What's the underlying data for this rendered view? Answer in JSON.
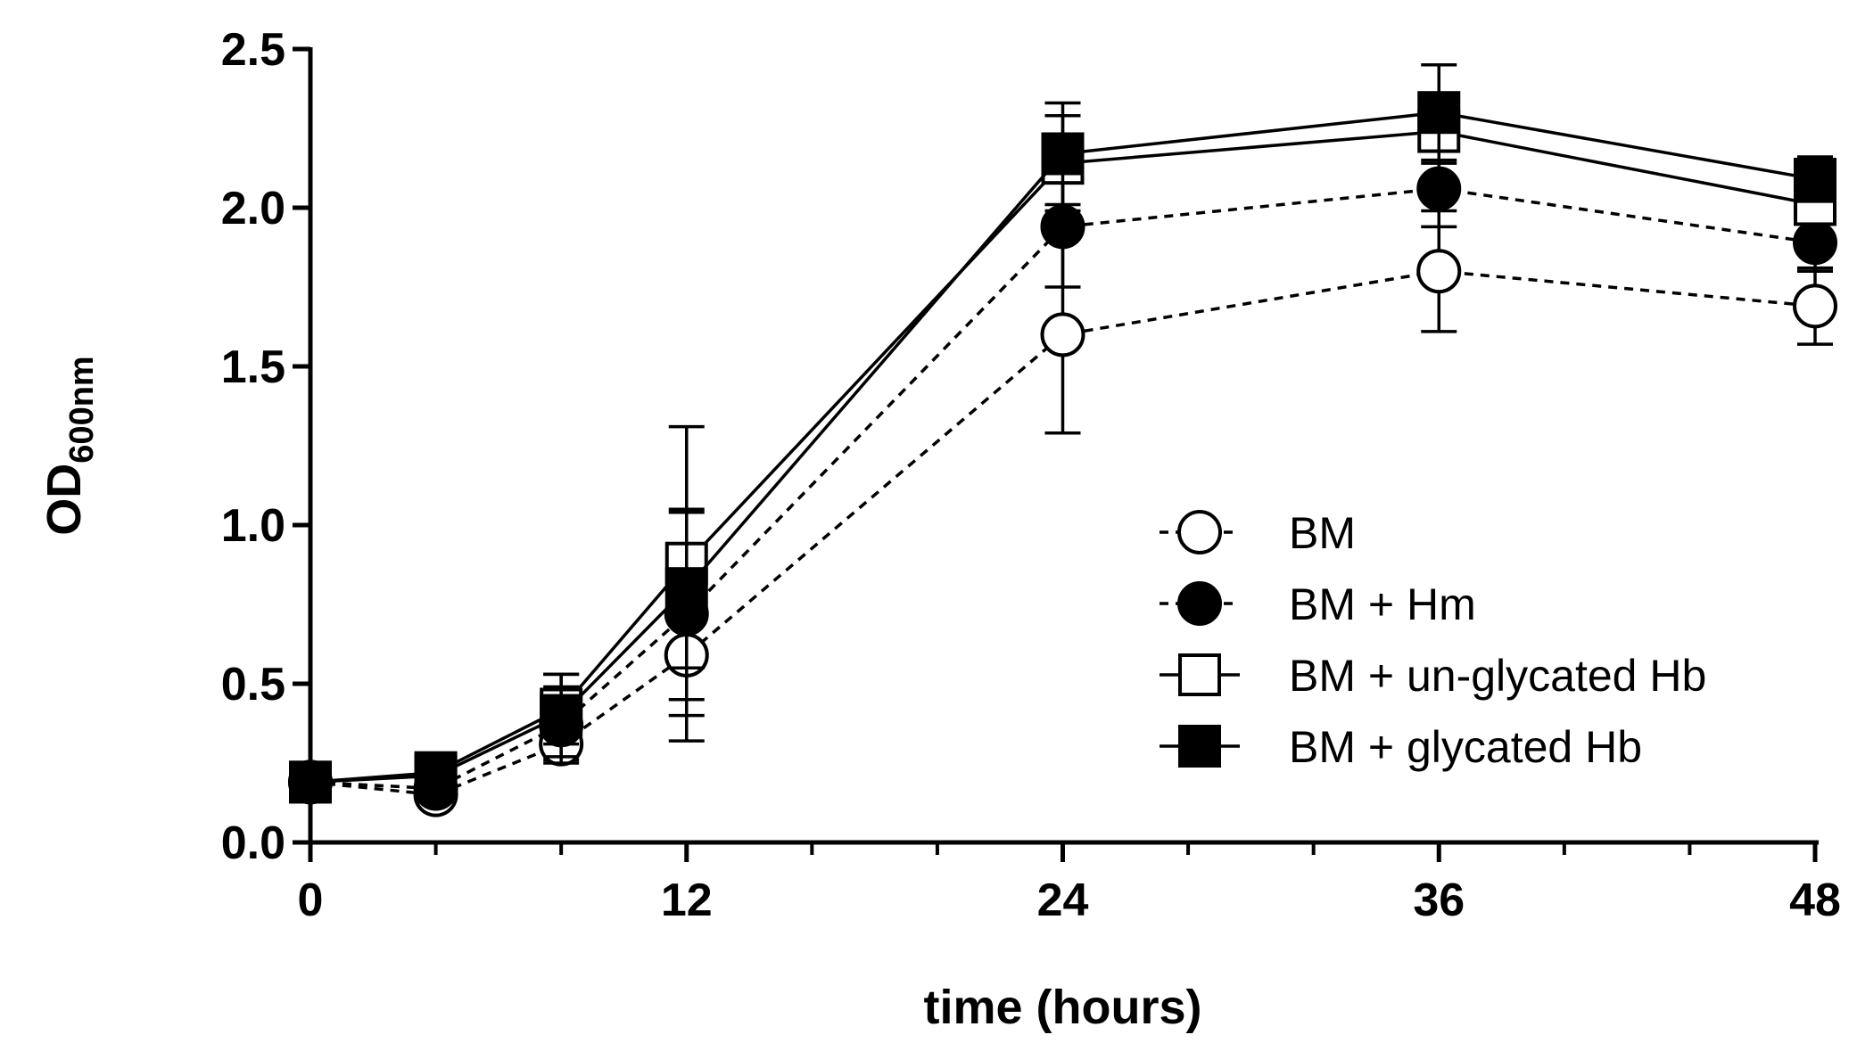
{
  "chart_data": {
    "type": "line",
    "title": "",
    "xlabel": "time (hours)",
    "ylabel": "OD",
    "ylabel_subscript": "600nm",
    "xlim": [
      0,
      48
    ],
    "ylim": [
      0,
      2.5
    ],
    "x_ticks": [
      0,
      12,
      24,
      36,
      48
    ],
    "x_tick_labels": [
      "0",
      "12",
      "24",
      "36",
      "48"
    ],
    "x_minor_ticks": [
      4,
      8,
      16,
      20,
      28,
      32,
      40,
      44
    ],
    "y_ticks": [
      0,
      0.5,
      1.0,
      1.5,
      2.0,
      2.5
    ],
    "y_tick_labels": [
      "0.0",
      "0.5",
      "1.0",
      "1.5",
      "2.0",
      "2.5"
    ],
    "grid": false,
    "legend_position": "right-middle",
    "x": [
      0,
      4,
      8,
      12,
      24,
      36,
      48
    ],
    "series": [
      {
        "name": "BM",
        "line_style": "dashed",
        "marker": "circle-open",
        "values": [
          0.19,
          0.15,
          0.31,
          0.59,
          1.6,
          1.8,
          1.69
        ],
        "errors": [
          0.01,
          0.01,
          0.05,
          0.27,
          0.31,
          0.19,
          0.12
        ]
      },
      {
        "name": "BM + Hm",
        "line_style": "dashed",
        "marker": "circle-filled",
        "values": [
          0.19,
          0.17,
          0.37,
          0.72,
          1.94,
          2.06,
          1.89
        ],
        "errors": [
          0.01,
          0.01,
          0.12,
          0.32,
          0.19,
          0.12,
          0.09
        ]
      },
      {
        "name": "BM + un-glycated Hb",
        "line_style": "solid",
        "marker": "square-open",
        "values": [
          0.19,
          0.22,
          0.42,
          0.88,
          2.14,
          2.24,
          2.01
        ],
        "errors": [
          0.01,
          0.01,
          0.11,
          0.43,
          0.15,
          0.1,
          0.1
        ]
      },
      {
        "name": "BM + glycated Hb",
        "line_style": "solid",
        "marker": "square-filled",
        "values": [
          0.19,
          0.21,
          0.4,
          0.8,
          2.17,
          2.3,
          2.09
        ],
        "errors": [
          0.01,
          0.01,
          0.13,
          0.25,
          0.16,
          0.15,
          0.07
        ]
      }
    ]
  },
  "colors": {
    "foreground": "#000000",
    "background": "#ffffff"
  }
}
